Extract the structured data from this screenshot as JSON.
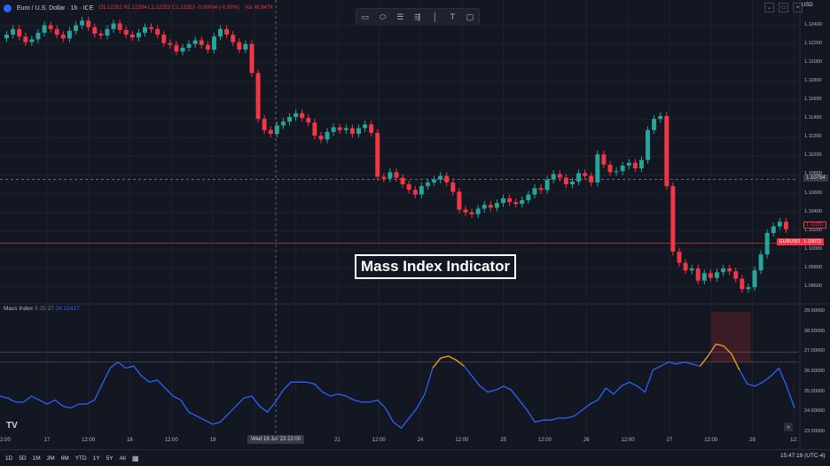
{
  "header": {
    "symbol": "Euro / U.S. Dollar · 1h · ICE",
    "ohlc": "O1.12291 H1.12304 L1.12253 C1.12253 -0.00004 (-0.00%)",
    "volume": "Vol 40.947K",
    "currency": "USD"
  },
  "drawing_tools": [
    "rectangle-icon",
    "ellipse-icon",
    "fib-icon",
    "parallel-channel-icon",
    "vertical-line-icon",
    "text-icon",
    "comment-icon"
  ],
  "price_axis": {
    "labels": [
      "1.12400",
      "1.12200",
      "1.12000",
      "1.11800",
      "1.11600",
      "1.11400",
      "1.11200",
      "1.11000",
      "1.10800",
      "1.10600",
      "1.10400",
      "1.10200",
      "1.10000",
      "1.09800",
      "1.09600"
    ],
    "crosshair_price": "1.10754",
    "last_price_symbol": "EURUSD",
    "last_price": "1.10072",
    "prev_price": "1.10251"
  },
  "indicator": {
    "name": "Mass Index",
    "params": "9 25 27",
    "value": "24.15417",
    "axis_labels": [
      "29.00000",
      "28.00000",
      "27.00000",
      "26.00000",
      "25.00000",
      "24.00000",
      "23.00000"
    ]
  },
  "title_overlay": "Mass Index Indicator",
  "time_axis": {
    "labels": [
      "2:00",
      "17",
      "12:00",
      "18",
      "12:00",
      "19",
      "12:00",
      "12:00",
      "21",
      "12:00",
      "24",
      "12:00",
      "25",
      "12:00",
      "26",
      "12:00",
      "27",
      "12:00",
      "28",
      "12:"
    ],
    "crosshair_time": "Wed 19 Jul '23   22:00"
  },
  "bottom_toolbar": {
    "ranges": [
      "1D",
      "5D",
      "1M",
      "3M",
      "6M",
      "YTD",
      "1Y",
      "5Y",
      "All"
    ],
    "clock": "15:47:19 (UTC-4)"
  },
  "colors": {
    "up": "#26a69a",
    "down": "#f23645",
    "mass_line": "#2962ff",
    "mass_high": "#ff9800"
  },
  "chart_data": {
    "type": "candlestick",
    "price_range": [
      1.0945,
      1.125
    ],
    "closes": [
      1.123,
      1.1236,
      1.1228,
      1.1222,
      1.1225,
      1.1232,
      1.124,
      1.1236,
      1.123,
      1.1226,
      1.1234,
      1.124,
      1.1245,
      1.1238,
      1.1231,
      1.1229,
      1.1236,
      1.1242,
      1.1235,
      1.123,
      1.1227,
      1.1232,
      1.1238,
      1.1236,
      1.123,
      1.1221,
      1.1219,
      1.1212,
      1.1216,
      1.122,
      1.1224,
      1.1219,
      1.1214,
      1.1228,
      1.1236,
      1.123,
      1.1222,
      1.1214,
      1.122,
      1.1189,
      1.114,
      1.1128,
      1.1124,
      1.1133,
      1.1137,
      1.1142,
      1.1146,
      1.1141,
      1.1136,
      1.1122,
      1.1118,
      1.1126,
      1.1131,
      1.1128,
      1.113,
      1.1124,
      1.113,
      1.1134,
      1.1125,
      1.1078,
      1.1076,
      1.1083,
      1.1077,
      1.107,
      1.1064,
      1.1059,
      1.1068,
      1.1072,
      1.1075,
      1.1079,
      1.1072,
      1.1062,
      1.1043,
      1.104,
      1.1038,
      1.1044,
      1.1048,
      1.1045,
      1.105,
      1.1055,
      1.1051,
      1.1049,
      1.1053,
      1.1059,
      1.1066,
      1.1064,
      1.1075,
      1.1081,
      1.1077,
      1.107,
      1.1073,
      1.1082,
      1.1079,
      1.1072,
      1.1102,
      1.1091,
      1.1083,
      1.1084,
      1.109,
      1.1093,
      1.1087,
      1.1096,
      1.1128,
      1.114,
      1.1143,
      1.1068,
      1.0998,
      1.0986,
      1.0978,
      1.098,
      1.0967,
      1.0975,
      1.097,
      1.0976,
      1.098,
      1.0977,
      1.0969,
      1.0958,
      1.096,
      1.0978,
      1.0995,
      1.1018,
      1.1025,
      1.103,
      1.1022
    ],
    "mass_index": [
      24.8,
      24.7,
      24.5,
      24.5,
      24.8,
      24.6,
      24.4,
      24.6,
      24.3,
      24.2,
      24.4,
      24.4,
      24.6,
      25.4,
      26.2,
      26.5,
      26.2,
      26.3,
      25.8,
      25.5,
      25.6,
      25.2,
      24.8,
      24.6,
      24.0,
      23.8,
      23.6,
      23.4,
      23.5,
      23.9,
      24.3,
      24.7,
      24.8,
      24.3,
      24.0,
      24.5,
      25.1,
      25.5,
      25.5,
      25.5,
      25.4,
      25.0,
      24.8,
      24.9,
      24.8,
      24.6,
      24.5,
      24.5,
      24.6,
      24.2,
      23.5,
      23.2,
      23.7,
      24.2,
      24.9,
      26.2,
      26.7,
      26.8,
      26.6,
      26.3,
      25.8,
      25.3,
      25.0,
      25.1,
      25.3,
      25.1,
      24.6,
      24.1,
      23.5,
      23.6,
      23.6,
      23.7,
      23.7,
      23.8,
      24.1,
      24.4,
      24.6,
      25.2,
      24.9,
      25.3,
      25.5,
      25.3,
      25.0,
      26.1,
      26.3,
      26.5,
      26.4,
      26.5,
      26.4,
      26.3,
      26.8,
      27.4,
      27.3,
      26.9,
      26.1,
      25.4,
      25.3,
      25.5,
      25.8,
      26.2,
      25.3,
      24.2
    ],
    "mass_highlight_threshold": 26.6,
    "mass_range": [
      22.9,
      29.1
    ],
    "reference_lines": [
      27.0,
      26.5
    ]
  }
}
